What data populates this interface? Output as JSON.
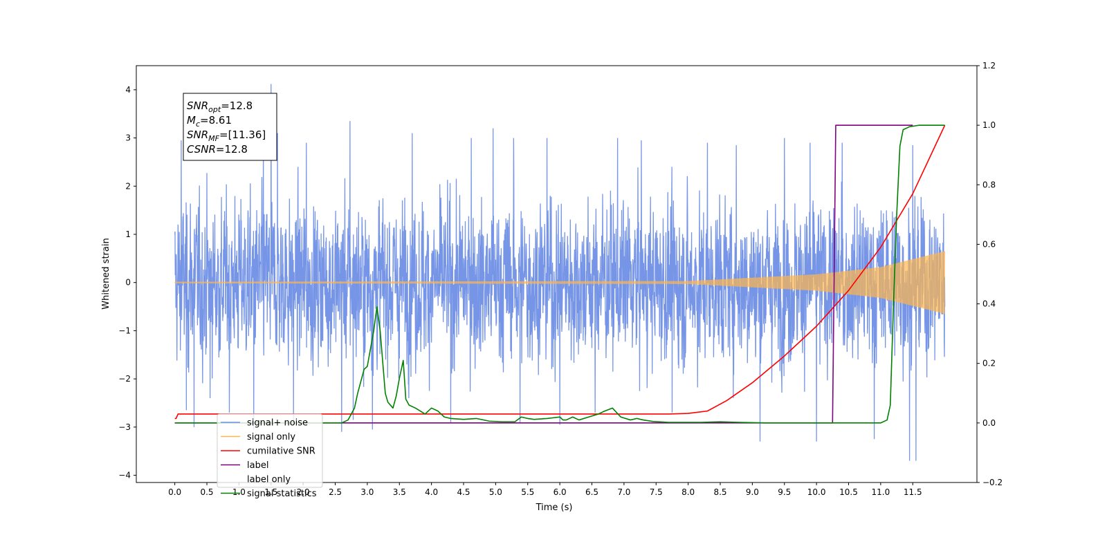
{
  "chart_data": {
    "type": "line",
    "xlabel": "Time (s)",
    "ylabel_left": "Whitened strain",
    "ylabel_right": "",
    "xlim": [
      -0.6,
      12.5
    ],
    "ylim_left": [
      -4.15,
      4.5
    ],
    "ylim_right": [
      -0.2,
      1.2
    ],
    "x_ticks": [
      0.0,
      0.5,
      1.0,
      1.5,
      2.0,
      2.5,
      3.0,
      3.5,
      4.0,
      4.5,
      5.0,
      5.5,
      6.0,
      6.5,
      7.0,
      7.5,
      8.0,
      8.5,
      9.0,
      9.5,
      10.0,
      10.5,
      11.0,
      11.5
    ],
    "x_tick_labels": [
      "0.0",
      "0.5",
      "1.0",
      "1.5",
      "2.0",
      "2.5",
      "3.0",
      "3.5",
      "4.0",
      "4.5",
      "5.0",
      "5.5",
      "6.0",
      "6.5",
      "7.0",
      "7.5",
      "8.0",
      "8.5",
      "9.0",
      "9.5",
      "10.0",
      "10.5",
      "11.0",
      "11.5"
    ],
    "y_left_ticks": [
      -4,
      -3,
      -2,
      -1,
      0,
      1,
      2,
      3,
      4
    ],
    "y_left_tick_labels": [
      "−4",
      "−3",
      "−2",
      "−1",
      "0",
      "1",
      "2",
      "3",
      "4"
    ],
    "y_right_ticks": [
      -0.2,
      0.0,
      0.2,
      0.4,
      0.6,
      0.8,
      1.0,
      1.2
    ],
    "y_right_tick_labels": [
      "−0.2",
      "0.0",
      "0.2",
      "0.4",
      "0.6",
      "0.8",
      "1.0",
      "1.2"
    ],
    "legend_position": "lower-left",
    "legend": [
      {
        "label": "signal+ noise",
        "color": "#6f8fe6"
      },
      {
        "label": "signal only",
        "color": "#ffb74d"
      },
      {
        "label": "cumilative SNR",
        "color": "#ff0000"
      },
      {
        "label": "label",
        "color": "#800080"
      },
      {
        "label": "label only",
        "color": "#ffffff"
      },
      {
        "label": "signal statistics",
        "color": "#008000"
      }
    ],
    "annotation_box": [
      {
        "main": "SNR",
        "sub": "opt",
        "rest": "=12.8"
      },
      {
        "main": "M",
        "sub": "c",
        "rest": "=8.61"
      },
      {
        "main": "SNR",
        "sub": "MF",
        "rest": "=[11.36]"
      },
      {
        "main": "CSNR",
        "sub": "",
        "rest": "=12.8"
      }
    ],
    "series": [
      {
        "name": "signal+ noise",
        "axis": "left",
        "color": "#6f8fe6",
        "kind": "noise",
        "x_range": [
          0.0,
          12.0
        ],
        "envelope_std": 0.75,
        "peaks": [
          [
            0.1,
            2.95
          ],
          [
            0.18,
            -2.65
          ],
          [
            0.3,
            -3.0
          ],
          [
            0.55,
            -2.4
          ],
          [
            0.85,
            -2.7
          ],
          [
            1.23,
            -3.05
          ],
          [
            1.38,
            3.0
          ],
          [
            1.5,
            4.12
          ],
          [
            1.6,
            3.1
          ],
          [
            1.85,
            -2.9
          ],
          [
            2.05,
            2.9
          ],
          [
            2.6,
            -3.1
          ],
          [
            2.73,
            3.35
          ],
          [
            2.78,
            -2.85
          ],
          [
            3.08,
            -3.05
          ],
          [
            3.7,
            3.1
          ],
          [
            4.3,
            -2.9
          ],
          [
            4.62,
            3.0
          ],
          [
            4.96,
            3.2
          ],
          [
            5.28,
            3.0
          ],
          [
            5.38,
            -2.9
          ],
          [
            5.8,
            3.0
          ],
          [
            6.0,
            -2.95
          ],
          [
            6.55,
            -2.7
          ],
          [
            6.9,
            3.0
          ],
          [
            7.27,
            2.95
          ],
          [
            7.75,
            -2.7
          ],
          [
            8.3,
            2.9
          ],
          [
            8.75,
            2.85
          ],
          [
            9.12,
            -3.3
          ],
          [
            9.5,
            3.0
          ],
          [
            9.9,
            2.9
          ],
          [
            10.0,
            -3.3
          ],
          [
            10.4,
            2.9
          ],
          [
            10.9,
            -3.25
          ],
          [
            11.45,
            -3.7
          ],
          [
            11.5,
            2.85
          ],
          [
            11.55,
            -3.7
          ]
        ]
      },
      {
        "name": "signal only",
        "axis": "left",
        "color": "#ffb74d",
        "kind": "chirp",
        "x_range": [
          0.0,
          12.0
        ],
        "amplitude": {
          "x": [
            0.0,
            8.0,
            9.0,
            10.0,
            11.0,
            12.0
          ],
          "y": [
            0.015,
            0.03,
            0.1,
            0.17,
            0.32,
            0.65
          ]
        }
      },
      {
        "name": "cumilative SNR",
        "axis": "right",
        "color": "#ff0000",
        "kind": "line",
        "x": [
          0.0,
          0.02,
          0.05,
          7.7,
          8.0,
          8.3,
          8.6,
          9.0,
          9.5,
          10.0,
          10.5,
          11.0,
          11.5,
          12.0
        ],
        "y": [
          0.015,
          0.015,
          0.03,
          0.03,
          0.032,
          0.04,
          0.075,
          0.135,
          0.225,
          0.325,
          0.445,
          0.59,
          0.77,
          1.0
        ]
      },
      {
        "name": "label",
        "axis": "right",
        "color": "#800080",
        "kind": "line",
        "x": [
          0.0,
          10.25,
          10.28,
          10.3,
          11.5
        ],
        "y": [
          0.0,
          0.0,
          0.6,
          1.0,
          1.0
        ]
      },
      {
        "name": "signal statistics",
        "axis": "right",
        "color": "#008000",
        "kind": "line",
        "x": [
          0.0,
          2.3,
          2.6,
          2.7,
          2.8,
          2.85,
          2.95,
          3.0,
          3.1,
          3.15,
          3.2,
          3.28,
          3.32,
          3.4,
          3.45,
          3.5,
          3.56,
          3.6,
          3.65,
          3.75,
          3.9,
          4.0,
          4.1,
          4.2,
          4.3,
          4.5,
          4.7,
          4.9,
          5.1,
          5.3,
          5.4,
          5.5,
          5.6,
          5.8,
          6.0,
          6.05,
          6.1,
          6.2,
          6.3,
          6.45,
          6.6,
          6.7,
          6.82,
          6.95,
          7.1,
          7.2,
          7.3,
          7.45,
          7.7,
          8.2,
          8.5,
          8.8,
          9.0,
          9.2,
          11.0,
          11.1,
          11.15,
          11.2,
          11.25,
          11.3,
          11.35,
          11.45,
          11.6,
          12.0
        ],
        "y": [
          0.0,
          0.0,
          0.0,
          0.01,
          0.05,
          0.1,
          0.18,
          0.19,
          0.31,
          0.39,
          0.31,
          0.1,
          0.07,
          0.05,
          0.09,
          0.15,
          0.21,
          0.08,
          0.06,
          0.05,
          0.03,
          0.05,
          0.04,
          0.02,
          0.015,
          0.012,
          0.015,
          0.006,
          0.004,
          0.004,
          0.02,
          0.015,
          0.012,
          0.015,
          0.02,
          0.01,
          0.01,
          0.02,
          0.01,
          0.02,
          0.03,
          0.04,
          0.05,
          0.02,
          0.01,
          0.015,
          0.01,
          0.005,
          0.002,
          0.002,
          0.004,
          0.002,
          0.001,
          0.0,
          0.0,
          0.01,
          0.06,
          0.4,
          0.7,
          0.93,
          0.985,
          0.995,
          1.0,
          1.0
        ]
      }
    ]
  }
}
